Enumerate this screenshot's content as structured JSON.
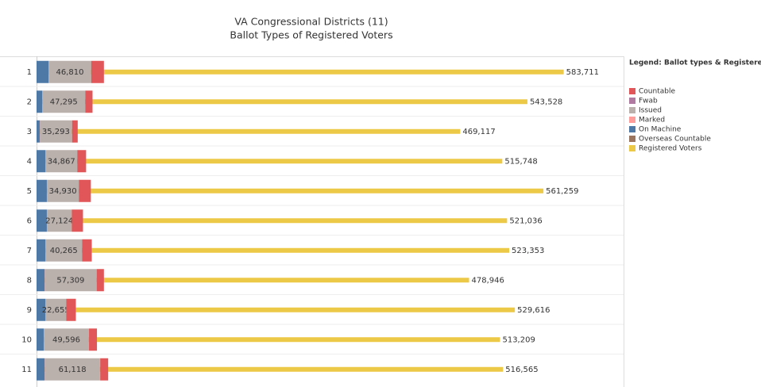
{
  "chart_data": {
    "type": "stacked-bar",
    "title": "VA Congressional Districts (11)",
    "subtitle": "Ballot Types of Registered Voters",
    "legend_title": "Legend: Ballot types & Registered Voters",
    "legend_position": "right",
    "categories": [
      "1",
      "2",
      "3",
      "4",
      "5",
      "6",
      "7",
      "8",
      "9",
      "10",
      "11"
    ],
    "xlim": [
      0,
      650000
    ],
    "series": [
      {
        "name": "Countable",
        "color": "#e15759",
        "values": [
          14000,
          7900,
          6200,
          9700,
          13200,
          12300,
          10600,
          7900,
          10600,
          8800,
          8800
        ]
      },
      {
        "name": "Fwab",
        "color": "#b07aa1",
        "values": [
          300,
          300,
          300,
          300,
          300,
          300,
          300,
          300,
          300,
          300,
          300
        ]
      },
      {
        "name": "Issued",
        "color": "#bab0ac",
        "values": [
          46810,
          47295,
          35293,
          34867,
          34930,
          27124,
          40265,
          57309,
          22655,
          49596,
          61118
        ],
        "value_labels": [
          "46,810",
          "47,295",
          "35,293",
          "34,867",
          "34,930",
          "27,124",
          "40,265",
          "57,309",
          "22,655",
          "49,596",
          "61,118"
        ]
      },
      {
        "name": "Marked",
        "color": "#ff9d9a",
        "values": [
          100,
          100,
          100,
          100,
          100,
          100,
          100,
          100,
          100,
          100,
          100
        ]
      },
      {
        "name": "On Machine",
        "color": "#4e79a7",
        "values": [
          13200,
          6200,
          3500,
          9700,
          11400,
          11400,
          9700,
          8800,
          9700,
          7900,
          8800
        ]
      },
      {
        "name": "Overseas Countable",
        "color": "#9c755f",
        "values": [
          200,
          200,
          200,
          200,
          200,
          200,
          200,
          200,
          200,
          200,
          200
        ]
      },
      {
        "name": "Registered Voters",
        "color": "#edc948",
        "values": [
          583711,
          543528,
          469117,
          515748,
          561259,
          521036,
          523353,
          478946,
          529616,
          513209,
          516565
        ],
        "value_labels": [
          "583,711",
          "543,528",
          "469,117",
          "515,748",
          "561,259",
          "521,036",
          "523,353",
          "478,946",
          "529,616",
          "513,209",
          "516,565"
        ]
      }
    ]
  }
}
